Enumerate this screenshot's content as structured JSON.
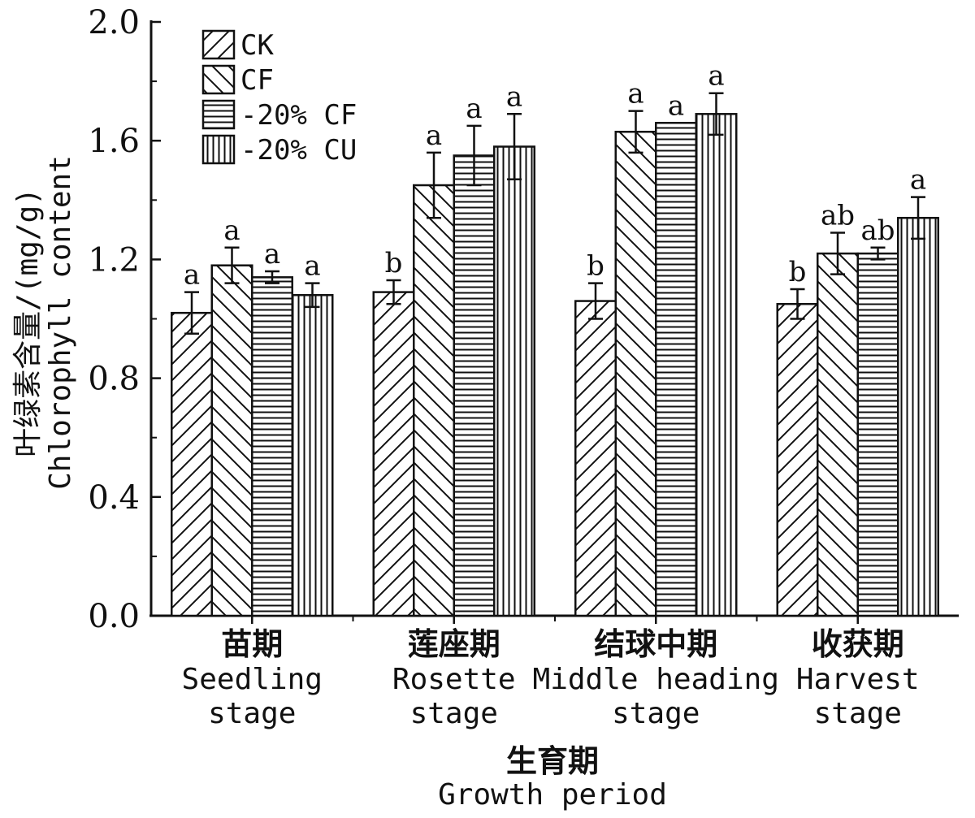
{
  "chart_data": {
    "type": "bar",
    "ylabel_cn": "叶绿素含量/(mg/g)",
    "ylabel_en": "Chlorophyll content",
    "xlabel_cn": "生育期",
    "xlabel_en": "Growth period",
    "ylim": [
      0,
      2.0
    ],
    "yticks": [
      "0.0",
      "0.4",
      "0.8",
      "1.2",
      "1.6",
      "2.0"
    ],
    "categories": [
      {
        "cn": "苗期",
        "en1": "Seedling",
        "en2": "stage"
      },
      {
        "cn": "莲座期",
        "en1": "Rosette",
        "en2": "stage"
      },
      {
        "cn": "结球中期",
        "en1": "Middle heading",
        "en2": "stage"
      },
      {
        "cn": "收获期",
        "en1": "Harvest",
        "en2": "stage"
      }
    ],
    "legend_position": "top-left",
    "series": [
      {
        "name": "CK",
        "pattern": "diag-up",
        "values": [
          1.02,
          1.09,
          1.06,
          1.05
        ],
        "errors": [
          0.07,
          0.04,
          0.06,
          0.05
        ],
        "sig": [
          "a",
          "b",
          "b",
          "b"
        ]
      },
      {
        "name": "CF",
        "pattern": "diag-down",
        "values": [
          1.18,
          1.45,
          1.63,
          1.22
        ],
        "errors": [
          0.06,
          0.11,
          0.07,
          0.07
        ],
        "sig": [
          "a",
          "a",
          "a",
          "ab"
        ]
      },
      {
        "name": "-20% CF",
        "pattern": "horizontal",
        "values": [
          1.14,
          1.55,
          1.66,
          1.22
        ],
        "errors": [
          0.02,
          0.1,
          0.0,
          0.02
        ],
        "sig": [
          "a",
          "a",
          "a",
          "ab"
        ]
      },
      {
        "name": "-20% CU",
        "pattern": "vertical",
        "values": [
          1.08,
          1.58,
          1.69,
          1.34
        ],
        "errors": [
          0.04,
          0.11,
          0.07,
          0.07
        ],
        "sig": [
          "a",
          "a",
          "a",
          "a"
        ]
      }
    ]
  }
}
